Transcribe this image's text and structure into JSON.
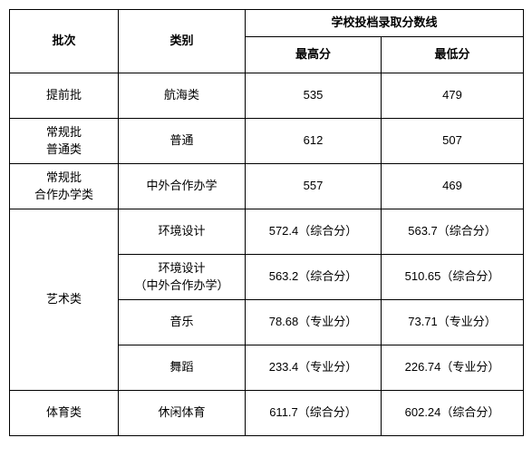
{
  "table": {
    "header": {
      "batch": "批次",
      "category": "类别",
      "scoreline": "学校投档录取分数线",
      "highest": "最高分",
      "lowest": "最低分"
    },
    "rows": [
      {
        "batch": "提前批",
        "batch_rowspan": 1,
        "category": "航海类",
        "high": "535",
        "low": "479"
      },
      {
        "batch": "常规批\n普通类",
        "batch_rowspan": 1,
        "category": "普通",
        "high": "612",
        "low": "507"
      },
      {
        "batch": "常规批\n合作办学类",
        "batch_rowspan": 1,
        "category": "中外合作办学",
        "high": "557",
        "low": "469"
      },
      {
        "batch": "艺术类",
        "batch_rowspan": 4,
        "category": "环境设计",
        "high": "572.4（综合分）",
        "low": "563.7（综合分）"
      },
      {
        "batch": null,
        "category": "环境设计\n（中外合作办学）",
        "high": "563.2（综合分）",
        "low": "510.65（综合分）"
      },
      {
        "batch": null,
        "category": "音乐",
        "high": "78.68（专业分）",
        "low": "73.71（专业分）"
      },
      {
        "batch": null,
        "category": "舞蹈",
        "high": "233.4（专业分）",
        "low": "226.74（专业分）"
      },
      {
        "batch": "体育类",
        "batch_rowspan": 1,
        "category": "休闲体育",
        "high": "611.7（综合分）",
        "low": "602.24（综合分）"
      }
    ]
  }
}
